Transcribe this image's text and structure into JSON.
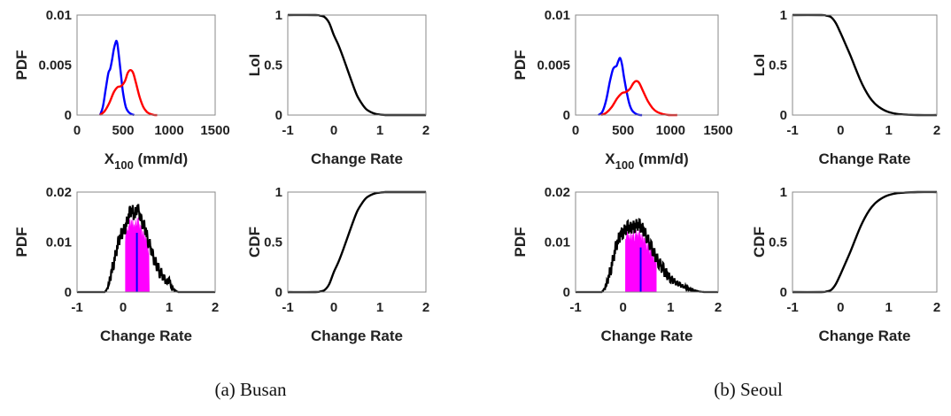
{
  "captions": [
    "(a) Busan",
    "(b) Seoul"
  ],
  "chart_data": [
    {
      "group": "Busan",
      "type": "line",
      "ylabel": "PDF",
      "xlabel_parts": [
        "X",
        "100",
        " (mm/d)"
      ],
      "xlim": [
        0,
        1500
      ],
      "ylim": [
        0,
        0.01
      ],
      "xticks": [
        "0",
        "500",
        "1000",
        "1500"
      ],
      "yticks": [
        "0",
        "0.005",
        "0.01"
      ],
      "series": [
        {
          "name": "blue",
          "color": "#0000ff",
          "x": [
            250,
            280,
            310,
            340,
            360,
            380,
            400,
            420,
            430,
            440,
            460,
            480,
            500,
            530,
            560,
            590,
            620
          ],
          "y": [
            0,
            0.0008,
            0.0025,
            0.0042,
            0.0046,
            0.0055,
            0.0066,
            0.0073,
            0.0074,
            0.007,
            0.0055,
            0.0038,
            0.0022,
            0.0008,
            0.0003,
            0.0001,
            0
          ]
        },
        {
          "name": "red",
          "color": "#ff0000",
          "x": [
            250,
            300,
            350,
            400,
            440,
            480,
            520,
            550,
            580,
            610,
            640,
            680,
            720,
            760,
            800,
            840,
            870
          ],
          "y": [
            0,
            0.0004,
            0.0012,
            0.0023,
            0.0028,
            0.0029,
            0.0034,
            0.0042,
            0.0045,
            0.0042,
            0.0032,
            0.0018,
            0.0008,
            0.0003,
            0.0001,
            0,
            0
          ]
        }
      ]
    },
    {
      "group": "Busan",
      "type": "line",
      "ylabel": "LoI",
      "xlabel": "Change Rate",
      "xlim": [
        -1,
        2
      ],
      "ylim": [
        0,
        1
      ],
      "xticks": [
        "-1",
        "0",
        "1",
        "2"
      ],
      "yticks": [
        "0",
        "0.5",
        "1"
      ],
      "series": [
        {
          "name": "LoI",
          "color": "#000000",
          "x": [
            -1,
            -0.4,
            -0.3,
            -0.2,
            -0.1,
            0,
            0.1,
            0.2,
            0.3,
            0.4,
            0.5,
            0.6,
            0.7,
            0.8,
            0.9,
            1.0,
            1.1,
            1.2,
            2
          ],
          "y": [
            1,
            1,
            0.995,
            0.98,
            0.92,
            0.8,
            0.7,
            0.58,
            0.45,
            0.32,
            0.2,
            0.12,
            0.06,
            0.03,
            0.012,
            0.004,
            0.001,
            0,
            0
          ]
        }
      ]
    },
    {
      "group": "Busan",
      "type": "hist",
      "ylabel": "PDF",
      "xlabel": "Change Rate",
      "xlim": [
        -1,
        2
      ],
      "ylim": [
        0,
        0.02
      ],
      "xticks": [
        "-1",
        "0",
        "1",
        "2"
      ],
      "yticks": [
        "0",
        "0.01",
        "0.02"
      ],
      "shade": [
        0.05,
        0.57
      ],
      "shade_color": "#ff00ff",
      "median": 0.3,
      "median_color": "#0000ff",
      "x": [
        -1,
        -0.4,
        -0.35,
        -0.3,
        -0.25,
        -0.2,
        -0.15,
        -0.1,
        -0.05,
        0,
        0.05,
        0.1,
        0.15,
        0.2,
        0.25,
        0.3,
        0.35,
        0.4,
        0.45,
        0.5,
        0.55,
        0.6,
        0.65,
        0.7,
        0.75,
        0.8,
        0.85,
        0.9,
        0.95,
        1.0,
        1.05,
        1.1,
        1.15,
        1.2,
        2
      ],
      "y": [
        0,
        0,
        0.0005,
        0.002,
        0.004,
        0.006,
        0.008,
        0.01,
        0.0115,
        0.012,
        0.013,
        0.0145,
        0.016,
        0.0165,
        0.015,
        0.017,
        0.016,
        0.014,
        0.0135,
        0.012,
        0.01,
        0.009,
        0.007,
        0.006,
        0.005,
        0.004,
        0.0035,
        0.0025,
        0.002,
        0.0025,
        0.001,
        0.0005,
        0.0002,
        0,
        0
      ]
    },
    {
      "group": "Busan",
      "type": "line",
      "ylabel": "CDF",
      "xlabel": "Change Rate",
      "xlim": [
        -1,
        2
      ],
      "ylim": [
        0,
        1
      ],
      "xticks": [
        "-1",
        "0",
        "1",
        "2"
      ],
      "yticks": [
        "0",
        "0.5",
        "1"
      ],
      "series": [
        {
          "name": "CDF",
          "color": "#000000",
          "x": [
            -1,
            -0.4,
            -0.3,
            -0.2,
            -0.1,
            0,
            0.1,
            0.2,
            0.3,
            0.4,
            0.5,
            0.6,
            0.7,
            0.8,
            0.9,
            1.0,
            1.1,
            1.2,
            2
          ],
          "y": [
            0,
            0,
            0.005,
            0.02,
            0.08,
            0.2,
            0.3,
            0.42,
            0.55,
            0.68,
            0.8,
            0.88,
            0.94,
            0.97,
            0.988,
            0.996,
            0.999,
            1,
            1
          ]
        }
      ]
    },
    {
      "group": "Seoul",
      "type": "line",
      "ylabel": "PDF",
      "xlabel_parts": [
        "X",
        "100",
        " (mm/d)"
      ],
      "xlim": [
        0,
        1500
      ],
      "ylim": [
        0,
        0.01
      ],
      "xticks": [
        "0",
        "500",
        "1000",
        "1500"
      ],
      "yticks": [
        "0",
        "0.005",
        "0.01"
      ],
      "series": [
        {
          "name": "blue",
          "color": "#0000ff",
          "x": [
            240,
            280,
            320,
            360,
            390,
            410,
            430,
            450,
            470,
            490,
            510,
            540,
            570,
            600,
            640,
            680,
            700
          ],
          "y": [
            0,
            0.0003,
            0.0014,
            0.0033,
            0.0045,
            0.0048,
            0.0049,
            0.0054,
            0.0057,
            0.005,
            0.0038,
            0.0022,
            0.001,
            0.0004,
            0.0001,
            0,
            0
          ]
        },
        {
          "name": "red",
          "color": "#ff0000",
          "x": [
            270,
            320,
            380,
            440,
            490,
            530,
            570,
            610,
            640,
            670,
            710,
            760,
            810,
            860,
            920,
            980,
            1070
          ],
          "y": [
            0,
            0.0002,
            0.0008,
            0.0017,
            0.0022,
            0.0023,
            0.0026,
            0.0032,
            0.0034,
            0.0032,
            0.0024,
            0.0014,
            0.0007,
            0.0003,
            0.0001,
            0,
            0
          ]
        }
      ]
    },
    {
      "group": "Seoul",
      "type": "line",
      "ylabel": "LoI",
      "xlabel": "Change Rate",
      "xlim": [
        -1,
        2
      ],
      "ylim": [
        0,
        1
      ],
      "xticks": [
        "-1",
        "0",
        "1",
        "2"
      ],
      "yticks": [
        "0",
        "0.5",
        "1"
      ],
      "series": [
        {
          "name": "LoI",
          "color": "#000000",
          "x": [
            -1,
            -0.4,
            -0.3,
            -0.2,
            -0.1,
            0,
            0.1,
            0.2,
            0.3,
            0.4,
            0.5,
            0.6,
            0.7,
            0.8,
            0.9,
            1.0,
            1.1,
            1.2,
            1.4,
            1.6,
            2
          ],
          "y": [
            1,
            1,
            0.995,
            0.98,
            0.92,
            0.82,
            0.71,
            0.6,
            0.48,
            0.36,
            0.26,
            0.18,
            0.12,
            0.08,
            0.05,
            0.03,
            0.018,
            0.01,
            0.003,
            0,
            0
          ]
        }
      ]
    },
    {
      "group": "Seoul",
      "type": "hist",
      "ylabel": "PDF",
      "xlabel": "Change Rate",
      "xlim": [
        -1,
        2
      ],
      "ylim": [
        0,
        0.02
      ],
      "xticks": [
        "-1",
        "0",
        "1",
        "2"
      ],
      "yticks": [
        "0",
        "0.01",
        "0.02"
      ],
      "shade": [
        0.05,
        0.7
      ],
      "shade_color": "#ff00ff",
      "median": 0.37,
      "median_color": "#0000ff",
      "x": [
        -1,
        -0.45,
        -0.4,
        -0.35,
        -0.3,
        -0.25,
        -0.2,
        -0.15,
        -0.1,
        -0.05,
        0,
        0.05,
        0.1,
        0.15,
        0.2,
        0.25,
        0.3,
        0.35,
        0.4,
        0.45,
        0.5,
        0.55,
        0.6,
        0.65,
        0.7,
        0.75,
        0.8,
        0.85,
        0.9,
        0.95,
        1.0,
        1.1,
        1.2,
        1.3,
        1.4,
        1.5,
        1.6,
        1.7,
        2
      ],
      "y": [
        0,
        0,
        0.0005,
        0.0015,
        0.003,
        0.005,
        0.007,
        0.009,
        0.0105,
        0.0115,
        0.012,
        0.0125,
        0.013,
        0.0128,
        0.013,
        0.0132,
        0.0135,
        0.0133,
        0.0128,
        0.012,
        0.011,
        0.0098,
        0.0088,
        0.0078,
        0.0068,
        0.006,
        0.0052,
        0.0045,
        0.0038,
        0.0032,
        0.0027,
        0.002,
        0.0014,
        0.001,
        0.0006,
        0.0003,
        0.0001,
        0,
        0
      ]
    },
    {
      "group": "Seoul",
      "type": "line",
      "ylabel": "CDF",
      "xlabel": "Change Rate",
      "xlim": [
        -1,
        2
      ],
      "ylim": [
        0,
        1
      ],
      "xticks": [
        "-1",
        "0",
        "1",
        "2"
      ],
      "yticks": [
        "0",
        "0.5",
        "1"
      ],
      "series": [
        {
          "name": "CDF",
          "color": "#000000",
          "x": [
            -1,
            -0.4,
            -0.3,
            -0.2,
            -0.1,
            0,
            0.1,
            0.2,
            0.3,
            0.4,
            0.5,
            0.6,
            0.7,
            0.8,
            0.9,
            1.0,
            1.1,
            1.2,
            1.4,
            1.6,
            2
          ],
          "y": [
            0,
            0,
            0.005,
            0.02,
            0.08,
            0.18,
            0.29,
            0.4,
            0.52,
            0.64,
            0.74,
            0.82,
            0.88,
            0.92,
            0.95,
            0.97,
            0.982,
            0.99,
            0.997,
            1,
            1
          ]
        }
      ]
    }
  ]
}
